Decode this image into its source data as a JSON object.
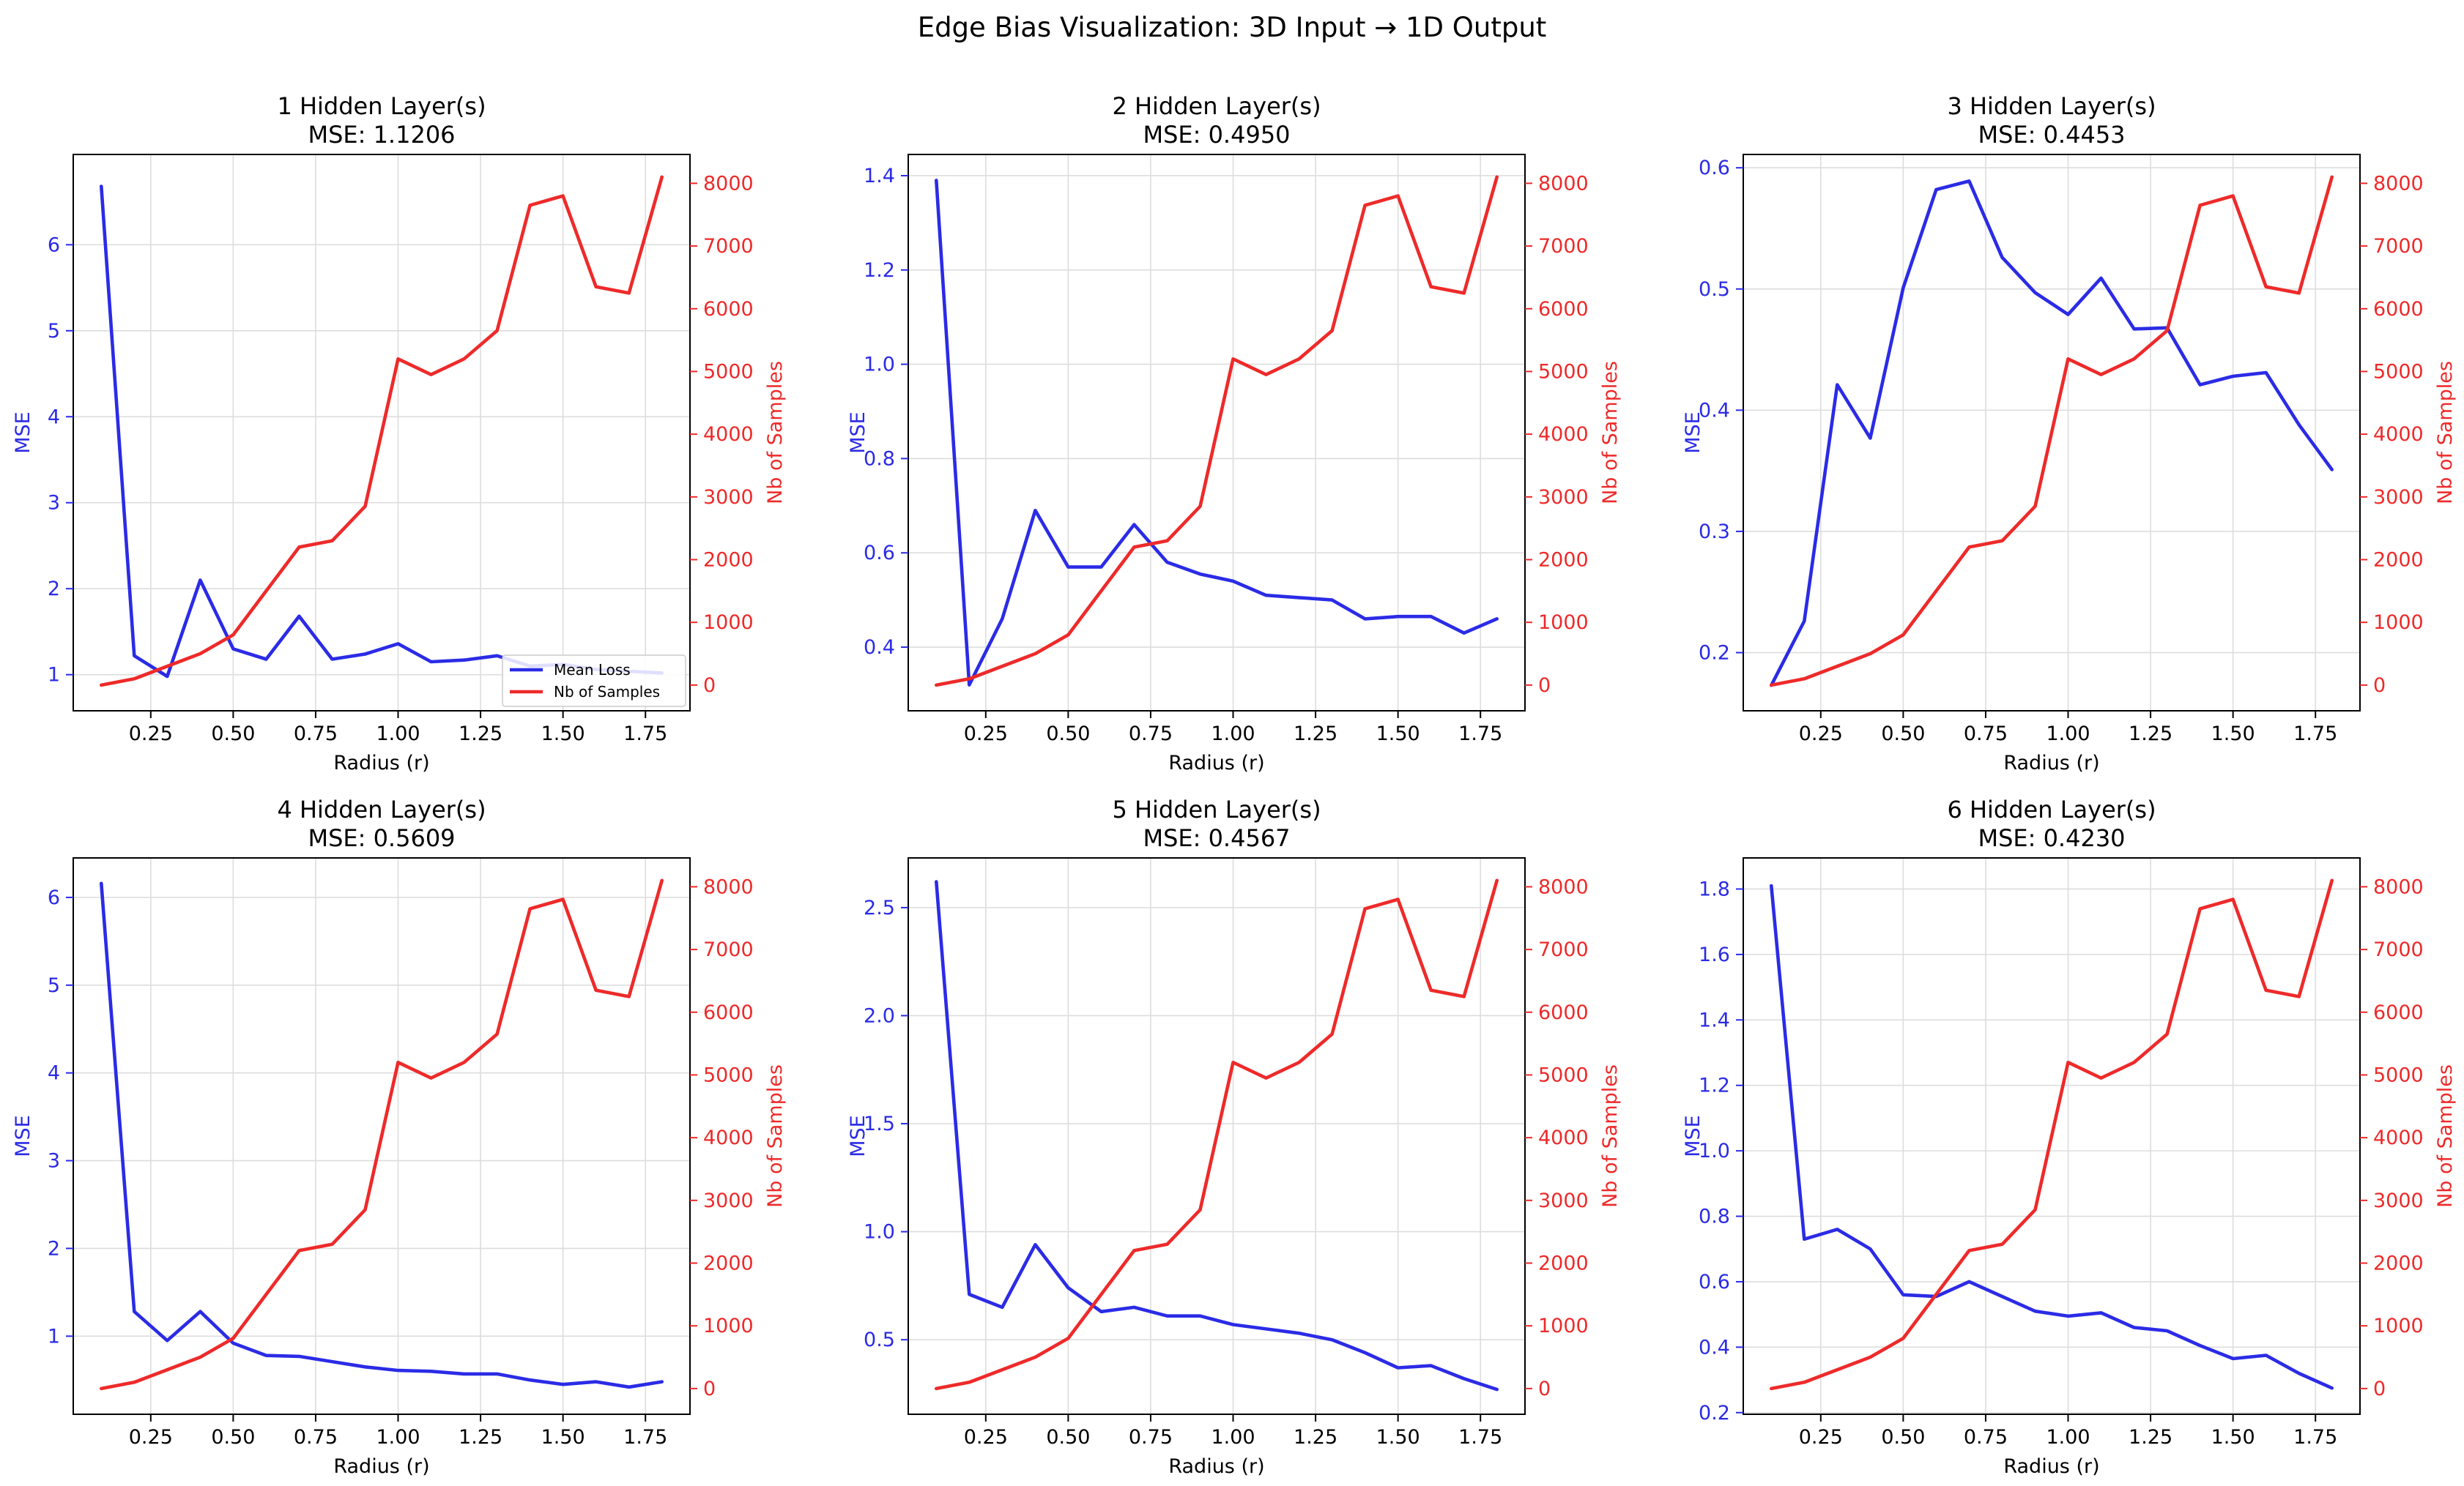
{
  "figure": {
    "title": "Edge Bias Visualization: 3D Input → 1D Output"
  },
  "colors": {
    "loss": "#2b2be6",
    "samples": "#ee2a2a",
    "grid": "#dddddd",
    "axis": "#000000"
  },
  "chart_data": [
    {
      "type": "line",
      "title": "1 Hidden Layer(s)",
      "subtitle": "MSE: 1.1206",
      "xlabel": "Radius (r)",
      "ylabel": "MSE",
      "y2label": "Nb of Samples",
      "xlim": [
        0.015,
        1.885
      ],
      "xticks": [
        0.25,
        0.5,
        0.75,
        1.0,
        1.25,
        1.5,
        1.75
      ],
      "xtick_labels": [
        "0.25",
        "0.50",
        "0.75",
        "1.00",
        "1.25",
        "1.50",
        "1.75"
      ],
      "ylim": [
        0.58,
        7.05
      ],
      "yticks": [
        1,
        2,
        3,
        4,
        5,
        6
      ],
      "ytick_labels": [
        "1",
        "2",
        "3",
        "4",
        "5",
        "6"
      ],
      "y2lim": [
        -410,
        8460
      ],
      "y2ticks": [
        0,
        1000,
        2000,
        3000,
        4000,
        5000,
        6000,
        7000,
        8000
      ],
      "y2tick_labels": [
        "0",
        "1000",
        "2000",
        "3000",
        "4000",
        "5000",
        "6000",
        "7000",
        "8000"
      ],
      "grid": true,
      "legend": {
        "position": "lower-right",
        "entries": [
          "Mean Loss",
          "Nb of Samples"
        ]
      },
      "x": [
        0.1,
        0.2,
        0.3,
        0.4,
        0.5,
        0.6,
        0.7,
        0.8,
        0.9,
        1.0,
        1.1,
        1.2,
        1.3,
        1.4,
        1.5,
        1.6,
        1.7,
        1.8
      ],
      "series": [
        {
          "name": "Mean Loss",
          "axis": "left",
          "values": [
            6.68,
            1.22,
            0.98,
            2.1,
            1.3,
            1.18,
            1.68,
            1.18,
            1.24,
            1.36,
            1.15,
            1.17,
            1.22,
            1.1,
            1.12,
            1.06,
            1.04,
            1.02
          ]
        },
        {
          "name": "Nb of Samples",
          "axis": "right",
          "values": [
            0,
            100,
            300,
            500,
            800,
            1500,
            2200,
            2300,
            2850,
            5200,
            4950,
            5200,
            5650,
            7650,
            7800,
            6350,
            6250,
            8100
          ]
        }
      ]
    },
    {
      "type": "line",
      "title": "2 Hidden Layer(s)",
      "subtitle": "MSE: 0.4950",
      "xlabel": "Radius (r)",
      "ylabel": "MSE",
      "y2label": "Nb of Samples",
      "xlim": [
        0.015,
        1.885
      ],
      "xticks": [
        0.25,
        0.5,
        0.75,
        1.0,
        1.25,
        1.5,
        1.75
      ],
      "xtick_labels": [
        "0.25",
        "0.50",
        "0.75",
        "1.00",
        "1.25",
        "1.50",
        "1.75"
      ],
      "ylim": [
        0.265,
        1.445
      ],
      "yticks": [
        0.4,
        0.6,
        0.8,
        1.0,
        1.2,
        1.4
      ],
      "ytick_labels": [
        "0.4",
        "0.6",
        "0.8",
        "1.0",
        "1.2",
        "1.4"
      ],
      "y2lim": [
        -410,
        8460
      ],
      "y2ticks": [
        0,
        1000,
        2000,
        3000,
        4000,
        5000,
        6000,
        7000,
        8000
      ],
      "y2tick_labels": [
        "0",
        "1000",
        "2000",
        "3000",
        "4000",
        "5000",
        "6000",
        "7000",
        "8000"
      ],
      "grid": true,
      "x": [
        0.1,
        0.2,
        0.3,
        0.4,
        0.5,
        0.6,
        0.7,
        0.8,
        0.9,
        1.0,
        1.1,
        1.2,
        1.3,
        1.4,
        1.5,
        1.6,
        1.7,
        1.8
      ],
      "series": [
        {
          "name": "Mean Loss",
          "axis": "left",
          "values": [
            1.39,
            0.32,
            0.46,
            0.69,
            0.57,
            0.57,
            0.66,
            0.58,
            0.555,
            0.54,
            0.51,
            0.505,
            0.5,
            0.46,
            0.465,
            0.465,
            0.43,
            0.46
          ]
        },
        {
          "name": "Nb of Samples",
          "axis": "right",
          "values": [
            0,
            100,
            300,
            500,
            800,
            1500,
            2200,
            2300,
            2850,
            5200,
            4950,
            5200,
            5650,
            7650,
            7800,
            6350,
            6250,
            8100
          ]
        }
      ]
    },
    {
      "type": "line",
      "title": "3 Hidden Layer(s)",
      "subtitle": "MSE: 0.4453",
      "xlabel": "Radius (r)",
      "ylabel": "MSE",
      "y2label": "Nb of Samples",
      "xlim": [
        0.015,
        1.885
      ],
      "xticks": [
        0.25,
        0.5,
        0.75,
        1.0,
        1.25,
        1.5,
        1.75
      ],
      "xtick_labels": [
        "0.25",
        "0.50",
        "0.75",
        "1.00",
        "1.25",
        "1.50",
        "1.75"
      ],
      "ylim": [
        0.152,
        0.611
      ],
      "yticks": [
        0.2,
        0.3,
        0.4,
        0.5,
        0.6
      ],
      "ytick_labels": [
        "0.2",
        "0.3",
        "0.4",
        "0.5",
        "0.6"
      ],
      "y2lim": [
        -410,
        8460
      ],
      "y2ticks": [
        0,
        1000,
        2000,
        3000,
        4000,
        5000,
        6000,
        7000,
        8000
      ],
      "y2tick_labels": [
        "0",
        "1000",
        "2000",
        "3000",
        "4000",
        "5000",
        "6000",
        "7000",
        "8000"
      ],
      "grid": true,
      "x": [
        0.1,
        0.2,
        0.3,
        0.4,
        0.5,
        0.6,
        0.7,
        0.8,
        0.9,
        1.0,
        1.1,
        1.2,
        1.3,
        1.4,
        1.5,
        1.6,
        1.7,
        1.8
      ],
      "series": [
        {
          "name": "Mean Loss",
          "axis": "left",
          "values": [
            0.173,
            0.226,
            0.421,
            0.377,
            0.501,
            0.582,
            0.589,
            0.526,
            0.497,
            0.479,
            0.509,
            0.467,
            0.468,
            0.421,
            0.428,
            0.431,
            0.388,
            0.351
          ]
        },
        {
          "name": "Nb of Samples",
          "axis": "right",
          "values": [
            0,
            100,
            300,
            500,
            800,
            1500,
            2200,
            2300,
            2850,
            5200,
            4950,
            5200,
            5650,
            7650,
            7800,
            6350,
            6250,
            8100
          ]
        }
      ]
    },
    {
      "type": "line",
      "title": "4 Hidden Layer(s)",
      "subtitle": "MSE: 0.5609",
      "xlabel": "Radius (r)",
      "ylabel": "MSE",
      "y2label": "Nb of Samples",
      "xlim": [
        0.015,
        1.885
      ],
      "xticks": [
        0.25,
        0.5,
        0.75,
        1.0,
        1.25,
        1.5,
        1.75
      ],
      "xtick_labels": [
        "0.25",
        "0.50",
        "0.75",
        "1.00",
        "1.25",
        "1.50",
        "1.75"
      ],
      "ylim": [
        0.11,
        6.45
      ],
      "yticks": [
        1,
        2,
        3,
        4,
        5,
        6
      ],
      "ytick_labels": [
        "1",
        "2",
        "3",
        "4",
        "5",
        "6"
      ],
      "y2lim": [
        -410,
        8460
      ],
      "y2ticks": [
        0,
        1000,
        2000,
        3000,
        4000,
        5000,
        6000,
        7000,
        8000
      ],
      "y2tick_labels": [
        "0",
        "1000",
        "2000",
        "3000",
        "4000",
        "5000",
        "6000",
        "7000",
        "8000"
      ],
      "grid": true,
      "x": [
        0.1,
        0.2,
        0.3,
        0.4,
        0.5,
        0.6,
        0.7,
        0.8,
        0.9,
        1.0,
        1.1,
        1.2,
        1.3,
        1.4,
        1.5,
        1.6,
        1.7,
        1.8
      ],
      "series": [
        {
          "name": "Mean Loss",
          "axis": "left",
          "values": [
            6.16,
            1.28,
            0.95,
            1.28,
            0.92,
            0.78,
            0.77,
            0.71,
            0.65,
            0.61,
            0.6,
            0.57,
            0.57,
            0.5,
            0.45,
            0.48,
            0.42,
            0.48
          ]
        },
        {
          "name": "Nb of Samples",
          "axis": "right",
          "values": [
            0,
            100,
            300,
            500,
            800,
            1500,
            2200,
            2300,
            2850,
            5200,
            4950,
            5200,
            5650,
            7650,
            7800,
            6350,
            6250,
            8100
          ]
        }
      ]
    },
    {
      "type": "line",
      "title": "5 Hidden Layer(s)",
      "subtitle": "MSE: 0.4567",
      "xlabel": "Radius (r)",
      "ylabel": "MSE",
      "y2label": "Nb of Samples",
      "xlim": [
        0.015,
        1.885
      ],
      "xticks": [
        0.25,
        0.5,
        0.75,
        1.0,
        1.25,
        1.5,
        1.75
      ],
      "xtick_labels": [
        "0.25",
        "0.50",
        "0.75",
        "1.00",
        "1.25",
        "1.50",
        "1.75"
      ],
      "ylim": [
        0.155,
        2.73
      ],
      "yticks": [
        0.5,
        1.0,
        1.5,
        2.0,
        2.5
      ],
      "ytick_labels": [
        "0.5",
        "1.0",
        "1.5",
        "2.0",
        "2.5"
      ],
      "y2lim": [
        -410,
        8460
      ],
      "y2ticks": [
        0,
        1000,
        2000,
        3000,
        4000,
        5000,
        6000,
        7000,
        8000
      ],
      "y2tick_labels": [
        "0",
        "1000",
        "2000",
        "3000",
        "4000",
        "5000",
        "6000",
        "7000",
        "8000"
      ],
      "grid": true,
      "x": [
        0.1,
        0.2,
        0.3,
        0.4,
        0.5,
        0.6,
        0.7,
        0.8,
        0.9,
        1.0,
        1.1,
        1.2,
        1.3,
        1.4,
        1.5,
        1.6,
        1.7,
        1.8
      ],
      "series": [
        {
          "name": "Mean Loss",
          "axis": "left",
          "values": [
            2.62,
            0.71,
            0.65,
            0.94,
            0.74,
            0.63,
            0.65,
            0.61,
            0.61,
            0.57,
            0.55,
            0.53,
            0.5,
            0.44,
            0.37,
            0.38,
            0.32,
            0.27
          ]
        },
        {
          "name": "Nb of Samples",
          "axis": "right",
          "values": [
            0,
            100,
            300,
            500,
            800,
            1500,
            2200,
            2300,
            2850,
            5200,
            4950,
            5200,
            5650,
            7650,
            7800,
            6350,
            6250,
            8100
          ]
        }
      ]
    },
    {
      "type": "line",
      "title": "6 Hidden Layer(s)",
      "subtitle": "MSE: 0.4230",
      "xlabel": "Radius (r)",
      "ylabel": "MSE",
      "y2label": "Nb of Samples",
      "xlim": [
        0.015,
        1.885
      ],
      "xticks": [
        0.25,
        0.5,
        0.75,
        1.0,
        1.25,
        1.5,
        1.75
      ],
      "xtick_labels": [
        "0.25",
        "0.50",
        "0.75",
        "1.00",
        "1.25",
        "1.50",
        "1.75"
      ],
      "ylim": [
        0.195,
        1.895
      ],
      "yticks": [
        0.2,
        0.4,
        0.6,
        0.8,
        1.0,
        1.2,
        1.4,
        1.6,
        1.8
      ],
      "ytick_labels": [
        "0.2",
        "0.4",
        "0.6",
        "0.8",
        "1.0",
        "1.2",
        "1.4",
        "1.6",
        "1.8"
      ],
      "y2lim": [
        -410,
        8460
      ],
      "y2ticks": [
        0,
        1000,
        2000,
        3000,
        4000,
        5000,
        6000,
        7000,
        8000
      ],
      "y2tick_labels": [
        "0",
        "1000",
        "2000",
        "3000",
        "4000",
        "5000",
        "6000",
        "7000",
        "8000"
      ],
      "grid": true,
      "x": [
        0.1,
        0.2,
        0.3,
        0.4,
        0.5,
        0.6,
        0.7,
        0.8,
        0.9,
        1.0,
        1.1,
        1.2,
        1.3,
        1.4,
        1.5,
        1.6,
        1.7,
        1.8
      ],
      "series": [
        {
          "name": "Mean Loss",
          "axis": "left",
          "values": [
            1.81,
            0.73,
            0.76,
            0.7,
            0.56,
            0.555,
            0.6,
            0.555,
            0.51,
            0.495,
            0.505,
            0.46,
            0.45,
            0.405,
            0.365,
            0.375,
            0.32,
            0.275
          ]
        },
        {
          "name": "Nb of Samples",
          "axis": "right",
          "values": [
            0,
            100,
            300,
            500,
            800,
            1500,
            2200,
            2300,
            2850,
            5200,
            4950,
            5200,
            5650,
            7650,
            7800,
            6350,
            6250,
            8100
          ]
        }
      ]
    }
  ]
}
